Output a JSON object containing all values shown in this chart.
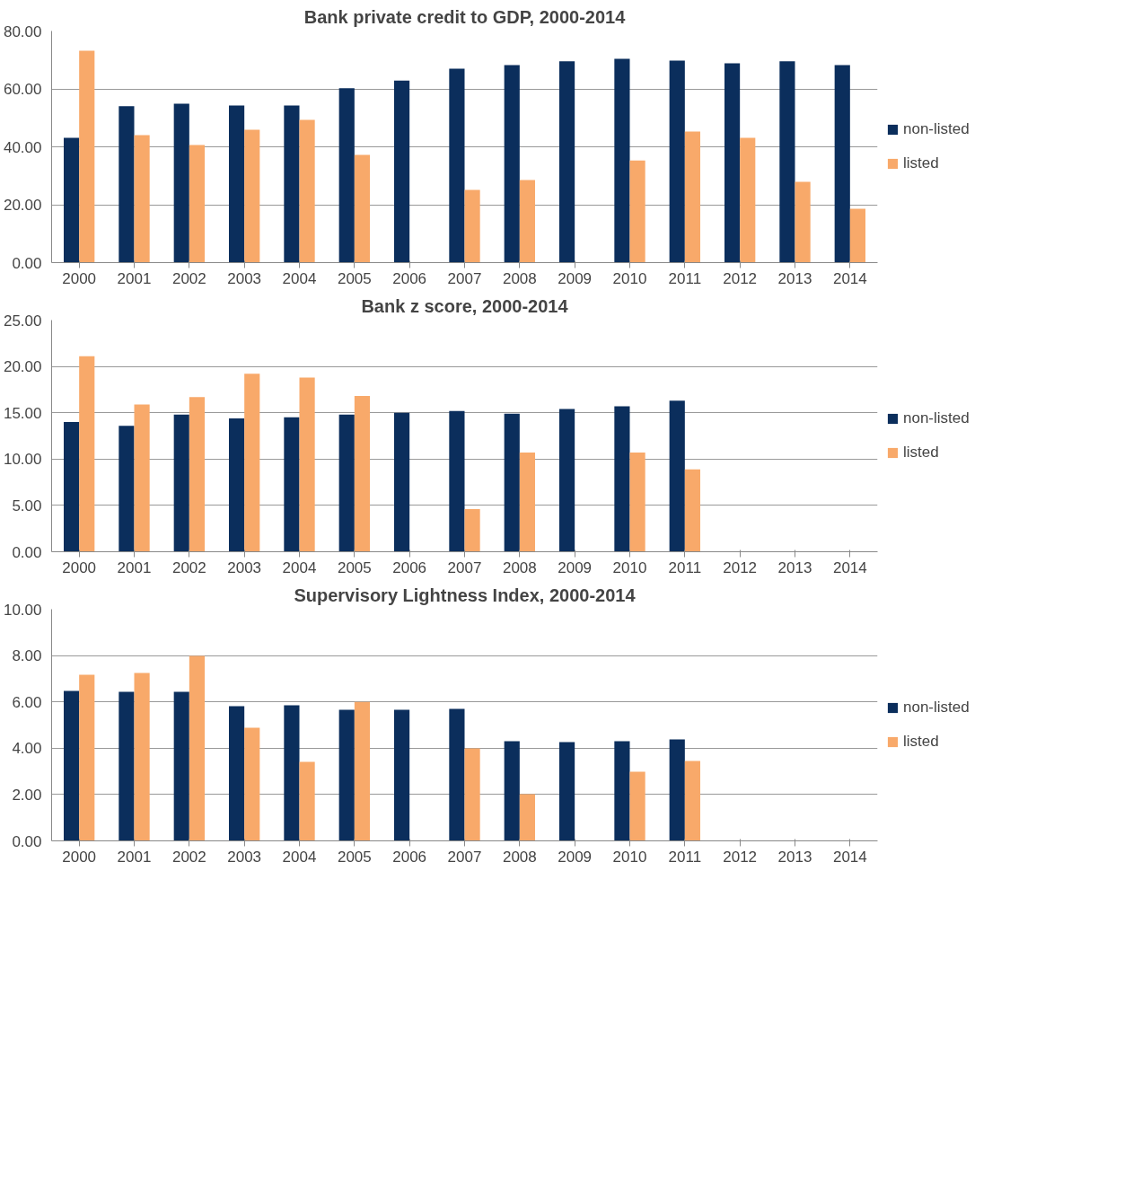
{
  "chart_data": [
    {
      "type": "bar",
      "title": "Bank private credit to GDP, 2000-2014",
      "categories": [
        "2000",
        "2001",
        "2002",
        "2003",
        "2004",
        "2005",
        "2006",
        "2007",
        "2008",
        "2009",
        "2010",
        "2011",
        "2012",
        "2013",
        "2014"
      ],
      "series": [
        {
          "name": "non-listed",
          "color": "#0b2e5c",
          "values": [
            43.1,
            54.0,
            54.9,
            54.3,
            54.3,
            60.2,
            62.9,
            67.0,
            68.2,
            69.5,
            70.4,
            69.8,
            68.8,
            69.5,
            68.2
          ]
        },
        {
          "name": "listed",
          "color": "#f8a96a",
          "values": [
            73.2,
            44.0,
            40.6,
            45.9,
            49.3,
            37.2,
            null,
            25.1,
            28.5,
            null,
            35.3,
            45.3,
            43.1,
            27.9,
            18.6
          ]
        }
      ],
      "ylim": [
        0,
        80
      ],
      "yticks": [
        {
          "value": 0,
          "label": "0.00"
        },
        {
          "value": 20,
          "label": "20.00"
        },
        {
          "value": 40,
          "label": "40.00"
        },
        {
          "value": 60,
          "label": "60.00"
        },
        {
          "value": 80,
          "label": "80.00"
        }
      ],
      "grid": "y",
      "legend": "right"
    },
    {
      "type": "bar",
      "title": "Bank z score, 2000-2014",
      "categories": [
        "2000",
        "2001",
        "2002",
        "2003",
        "2004",
        "2005",
        "2006",
        "2007",
        "2008",
        "2009",
        "2010",
        "2011",
        "2012",
        "2013",
        "2014"
      ],
      "series": [
        {
          "name": "non-listed",
          "color": "#0b2e5c",
          "values": [
            14.0,
            13.6,
            14.8,
            14.4,
            14.5,
            14.8,
            15.0,
            15.2,
            14.9,
            15.4,
            15.7,
            16.3,
            null,
            null,
            null
          ]
        },
        {
          "name": "listed",
          "color": "#f8a96a",
          "values": [
            21.1,
            15.9,
            16.7,
            19.2,
            18.8,
            16.8,
            null,
            4.6,
            10.7,
            null,
            10.7,
            8.9,
            null,
            null,
            null
          ]
        }
      ],
      "ylim": [
        0,
        25
      ],
      "yticks": [
        {
          "value": 0,
          "label": "0.00"
        },
        {
          "value": 5,
          "label": "5.00"
        },
        {
          "value": 10,
          "label": "10.00"
        },
        {
          "value": 15,
          "label": "15.00"
        },
        {
          "value": 20,
          "label": "20.00"
        },
        {
          "value": 25,
          "label": "25.00"
        }
      ],
      "grid": "y",
      "legend": "right"
    },
    {
      "type": "bar",
      "title": "Supervisory Lightness Index, 2000-2014",
      "categories": [
        "2000",
        "2001",
        "2002",
        "2003",
        "2004",
        "2005",
        "2006",
        "2007",
        "2008",
        "2009",
        "2010",
        "2011",
        "2012",
        "2013",
        "2014"
      ],
      "series": [
        {
          "name": "non-listed",
          "color": "#0b2e5c",
          "values": [
            6.47,
            6.43,
            6.43,
            5.81,
            5.85,
            5.66,
            5.66,
            5.7,
            4.3,
            4.26,
            4.3,
            4.38,
            null,
            null,
            null
          ]
        },
        {
          "name": "listed",
          "color": "#f8a96a",
          "values": [
            7.17,
            7.25,
            7.98,
            4.88,
            3.41,
            6.0,
            null,
            3.99,
            2.02,
            null,
            2.98,
            3.45,
            null,
            null,
            null
          ]
        }
      ],
      "ylim": [
        0,
        10
      ],
      "yticks": [
        {
          "value": 0,
          "label": "0.00"
        },
        {
          "value": 2,
          "label": "2.00"
        },
        {
          "value": 4,
          "label": "4.00"
        },
        {
          "value": 6,
          "label": "6.00"
        },
        {
          "value": 8,
          "label": "8.00"
        },
        {
          "value": 10,
          "label": "10.00"
        }
      ],
      "grid": "y",
      "legend": "right"
    }
  ]
}
